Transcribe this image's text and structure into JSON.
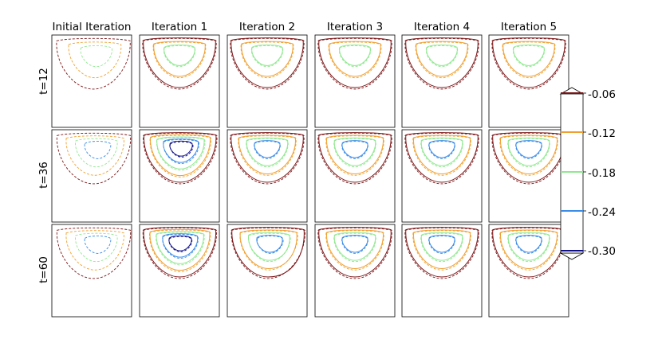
{
  "chart_data": {
    "type": "contour-grid",
    "columns": [
      "Initial Iteration",
      "Iteration 1",
      "Iteration 2",
      "Iteration 3",
      "Iteration 4",
      "Iteration 5"
    ],
    "rows": [
      "t=12",
      "t=36",
      "t=60"
    ],
    "colorbar": {
      "ticks": [
        "-0.06",
        "-0.12",
        "-0.18",
        "-0.24",
        "-0.30"
      ],
      "values": [
        -0.06,
        -0.12,
        -0.18,
        -0.24,
        -0.3
      ],
      "colors": [
        "#7b1416",
        "#f0a030",
        "#90e890",
        "#3a8ce8",
        "#10108a"
      ],
      "extend": "both"
    },
    "linestyles": {
      "solid": "predicted",
      "dashed": "reference"
    },
    "panels": [
      {
        "row": 0,
        "col": 0,
        "levels": [
          1,
          2,
          3
        ],
        "skew": 0.25,
        "solid": false,
        "dashed": true
      },
      {
        "row": 0,
        "col": 1,
        "levels": [
          1,
          2,
          3
        ],
        "skew": 0,
        "solid": true,
        "dashed": true
      },
      {
        "row": 0,
        "col": 2,
        "levels": [
          1,
          2,
          3
        ],
        "skew": 0,
        "solid": true,
        "dashed": true
      },
      {
        "row": 0,
        "col": 3,
        "levels": [
          1,
          2,
          3
        ],
        "skew": 0,
        "solid": true,
        "dashed": true
      },
      {
        "row": 0,
        "col": 4,
        "levels": [
          1,
          2,
          3
        ],
        "skew": 0,
        "solid": true,
        "dashed": true
      },
      {
        "row": 0,
        "col": 5,
        "levels": [
          1,
          2,
          3
        ],
        "skew": 0,
        "solid": true,
        "dashed": true
      },
      {
        "row": 1,
        "col": 0,
        "levels": [
          1,
          2,
          3,
          4
        ],
        "skew": 0.3,
        "solid": false,
        "dashed": true
      },
      {
        "row": 1,
        "col": 1,
        "levels": [
          1,
          2,
          3,
          4,
          5
        ],
        "skew": 0.1,
        "solid": true,
        "dashed": true
      },
      {
        "row": 1,
        "col": 2,
        "levels": [
          1,
          2,
          3,
          4
        ],
        "skew": 0,
        "solid": true,
        "dashed": true
      },
      {
        "row": 1,
        "col": 3,
        "levels": [
          1,
          2,
          3,
          4
        ],
        "skew": 0,
        "solid": true,
        "dashed": true
      },
      {
        "row": 1,
        "col": 4,
        "levels": [
          1,
          2,
          3,
          4
        ],
        "skew": 0,
        "solid": true,
        "dashed": true
      },
      {
        "row": 1,
        "col": 5,
        "levels": [
          1,
          2,
          3,
          4
        ],
        "skew": 0,
        "solid": true,
        "dashed": true
      },
      {
        "row": 2,
        "col": 0,
        "levels": [
          1,
          2,
          3,
          4
        ],
        "skew": 0.3,
        "solid": false,
        "dashed": true
      },
      {
        "row": 2,
        "col": 1,
        "levels": [
          1,
          2,
          3,
          4,
          5
        ],
        "skew": 0.05,
        "solid": true,
        "dashed": true
      },
      {
        "row": 2,
        "col": 2,
        "levels": [
          1,
          2,
          3,
          4
        ],
        "skew": 0.15,
        "solid": true,
        "dashed": true
      },
      {
        "row": 2,
        "col": 3,
        "levels": [
          1,
          2,
          3,
          4
        ],
        "skew": 0,
        "solid": true,
        "dashed": true
      },
      {
        "row": 2,
        "col": 4,
        "levels": [
          1,
          2,
          3,
          4
        ],
        "skew": 0,
        "solid": true,
        "dashed": true
      },
      {
        "row": 2,
        "col": 5,
        "levels": [
          1,
          2,
          3,
          4
        ],
        "skew": 0,
        "solid": true,
        "dashed": true
      }
    ]
  }
}
